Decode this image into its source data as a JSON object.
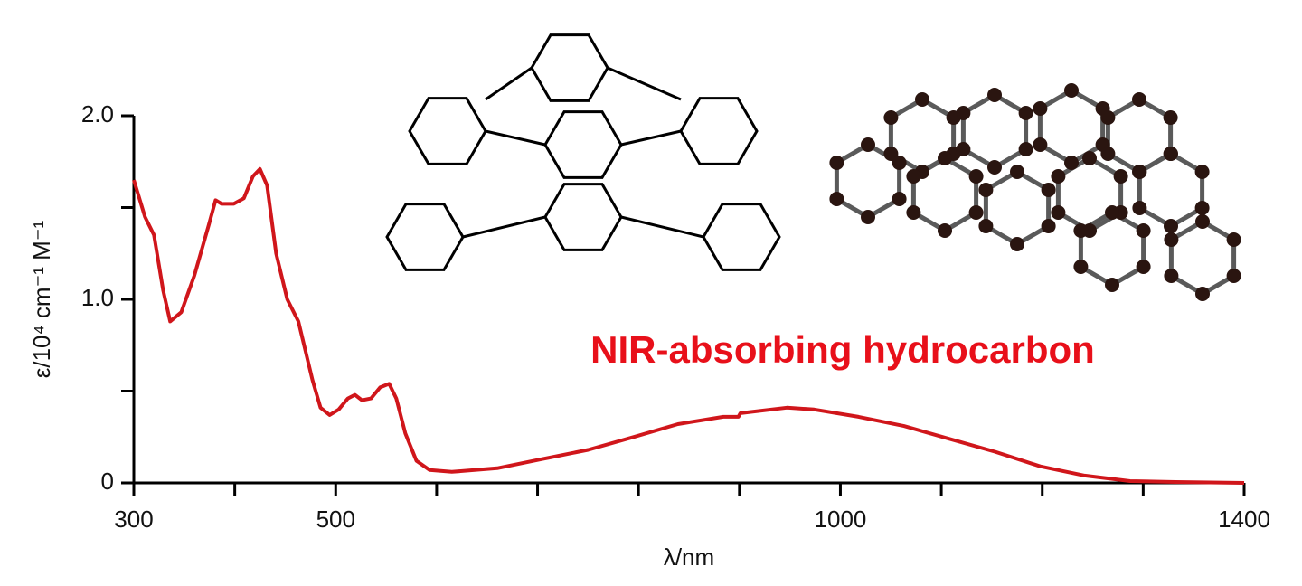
{
  "chart_data": {
    "type": "line",
    "annotation": "NIR-absorbing hydrocarbon",
    "annotation_color": "#e8101a",
    "xlabel": "λ/nm",
    "ylabel": "ε/10⁴ cm⁻¹ M⁻¹",
    "xlim": [
      300,
      1400
    ],
    "xticks": [
      300,
      500,
      1000,
      1400
    ],
    "xminorticks": [
      400,
      600,
      700,
      800,
      900,
      1100,
      1200,
      1300
    ],
    "ylim": [
      0,
      2
    ],
    "yticks": [
      0,
      {
        "value": 1,
        "label": "1.0"
      },
      {
        "value": 2,
        "label": "2.0"
      }
    ],
    "yminorticks": [
      0.5,
      1.5
    ],
    "series": [
      {
        "color": "#d0161b",
        "x": [
          300,
          311,
          320,
          329,
          336,
          347,
          360,
          374,
          381,
          387,
          399,
          409,
          418,
          425,
          432,
          441,
          452,
          463,
          477,
          485,
          494,
          503,
          512,
          519,
          526,
          535,
          544,
          553,
          560,
          569,
          580,
          593,
          615,
          660,
          705,
          750,
          795,
          839,
          884,
          899,
          901,
          947,
          974,
          1018,
          1063,
          1108,
          1153,
          1198,
          1242,
          1287,
          1332,
          1400
        ],
        "values": [
          1.65,
          1.45,
          1.35,
          1.05,
          0.88,
          0.93,
          1.13,
          1.4,
          1.54,
          1.52,
          1.52,
          1.55,
          1.67,
          1.71,
          1.62,
          1.25,
          1.0,
          0.88,
          0.56,
          0.41,
          0.37,
          0.4,
          0.46,
          0.48,
          0.45,
          0.46,
          0.52,
          0.54,
          0.46,
          0.27,
          0.12,
          0.07,
          0.06,
          0.08,
          0.13,
          0.18,
          0.25,
          0.32,
          0.36,
          0.36,
          0.38,
          0.41,
          0.4,
          0.36,
          0.31,
          0.24,
          0.17,
          0.09,
          0.04,
          0.01,
          0.005,
          0
        ]
      }
    ]
  }
}
